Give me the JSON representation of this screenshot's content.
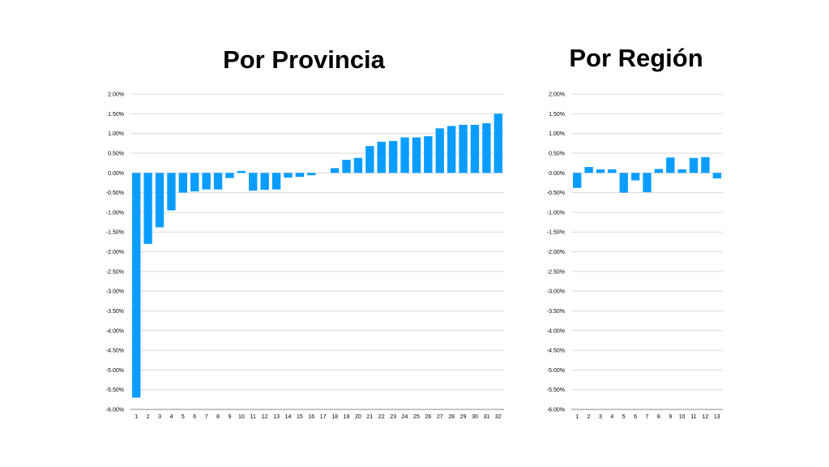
{
  "colors": {
    "bar": "#0a9dff",
    "grid": "#d9d9d9",
    "axis": "#888888",
    "text": "#000000"
  },
  "chart_data": [
    {
      "type": "bar",
      "title": "Por Provincia",
      "xlabel": "",
      "ylabel": "",
      "ylim": [
        -6,
        2
      ],
      "y_ticks": [
        2,
        1.5,
        1,
        0.5,
        0,
        -0.5,
        -1,
        -1.5,
        -2,
        -2.5,
        -3,
        -3.5,
        -4,
        -4.5,
        -5,
        -5.5,
        -6
      ],
      "y_tick_labels": [
        "2.00%",
        "1.50%",
        "1.00%",
        "0.50%",
        "0.00%",
        "-0.50%",
        "-1.00%",
        "-1.50%",
        "-2.00%",
        "-2.50%",
        "-3.00%",
        "-3.50%",
        "-4.00%",
        "-4.50%",
        "-5.00%",
        "-5.50%",
        "-6.00%"
      ],
      "grid": true,
      "categories": [
        "1",
        "2",
        "3",
        "4",
        "5",
        "6",
        "7",
        "8",
        "9",
        "10",
        "11",
        "12",
        "13",
        "14",
        "15",
        "16",
        "17",
        "18",
        "19",
        "20",
        "21",
        "22",
        "23",
        "24",
        "25",
        "26",
        "27",
        "28",
        "29",
        "30",
        "31",
        "32"
      ],
      "values": [
        -5.7,
        -1.8,
        -1.38,
        -0.95,
        -0.5,
        -0.47,
        -0.42,
        -0.42,
        -0.13,
        0.05,
        -0.45,
        -0.43,
        -0.42,
        -0.12,
        -0.1,
        -0.06,
        0.0,
        0.12,
        0.33,
        0.38,
        0.68,
        0.79,
        0.81,
        0.9,
        0.9,
        0.93,
        1.13,
        1.19,
        1.22,
        1.22,
        1.26,
        1.5
      ]
    },
    {
      "type": "bar",
      "title": "Por Región",
      "xlabel": "",
      "ylabel": "",
      "ylim": [
        -6,
        2
      ],
      "y_ticks": [
        2,
        1.5,
        1,
        0.5,
        0,
        -0.5,
        -1,
        -1.5,
        -2,
        -2.5,
        -3,
        -3.5,
        -4,
        -4.5,
        -5,
        -5.5,
        -6
      ],
      "y_tick_labels": [
        "2.00%",
        "1.50%",
        "1.00%",
        "0.50%",
        "0.00%",
        "-0.50%",
        "-1.00%",
        "-1.50%",
        "-2.00%",
        "-2.50%",
        "-3.00%",
        "-3.50%",
        "-4.00%",
        "-4.50%",
        "-5.00%",
        "-5.50%",
        "-6.00%"
      ],
      "grid": true,
      "categories": [
        "1",
        "2",
        "3",
        "4",
        "5",
        "6",
        "7",
        "8",
        "9",
        "10",
        "11",
        "12",
        "13"
      ],
      "values": [
        -0.38,
        0.15,
        0.09,
        0.09,
        -0.5,
        -0.19,
        -0.49,
        0.1,
        0.39,
        0.09,
        0.38,
        0.4,
        -0.14
      ]
    }
  ]
}
